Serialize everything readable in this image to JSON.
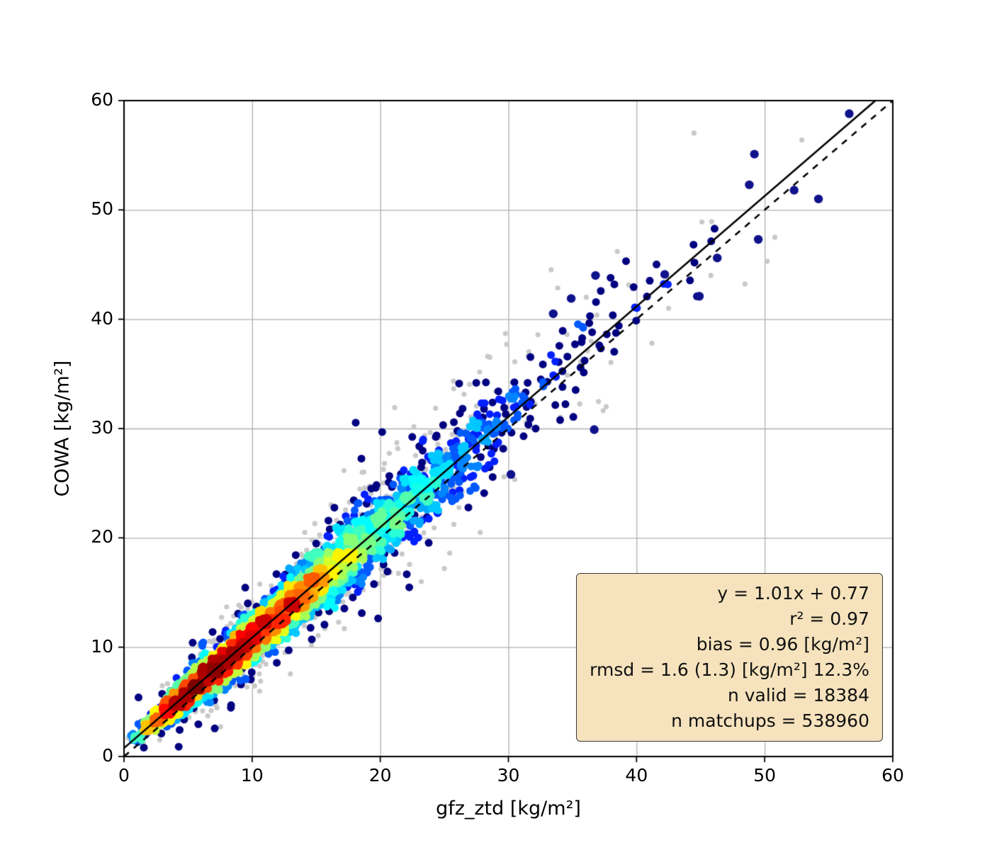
{
  "chart_data": {
    "type": "scatter",
    "title": "",
    "xlabel": "gfz_ztd [kg/m²]",
    "ylabel": "COWA [kg/m²]",
    "xlim": [
      0,
      60
    ],
    "ylim": [
      0,
      60
    ],
    "xticks": [
      0,
      10,
      20,
      30,
      40,
      50,
      60
    ],
    "yticks": [
      0,
      10,
      20,
      30,
      40,
      50,
      60
    ],
    "grid": true,
    "grid_color": "#b0b0b0",
    "colormap": "jet",
    "fit_line": {
      "slope": 1.01,
      "intercept": 0.77,
      "style": "solid",
      "color": "#000000"
    },
    "identity_line": {
      "slope": 1,
      "intercept": 0,
      "style": "dashed",
      "color": "#000000"
    },
    "stats_box": {
      "background": "#f6e3bd",
      "border": "#3a3a3a",
      "lines": [
        "y = 1.01x + 0.77",
        "r² = 0.97",
        "bias = 0.96 [kg/m²]",
        "rmsd = 1.6 (1.3) [kg/m²] 12.3%",
        "n valid = 18384",
        "n matchups = 538960"
      ],
      "fit_equation": "y = 1.01x + 0.77",
      "r_squared": 0.97,
      "bias": 0.96,
      "rmsd": 1.6,
      "rmsd_alt": 1.3,
      "rmsd_percent": 12.3,
      "n_valid": 18384,
      "n_matchups": 538960
    },
    "density_scatter": {
      "seed": 42,
      "n_colored": 4200,
      "n_gray": 650,
      "x_gamma_shape": 3,
      "x_gamma_scale": 4.2,
      "noise_base": 0.45,
      "noise_slope": 0.055,
      "wide_frac": 0.03,
      "wide_mult": 2.8,
      "gray_noise_base": 0.9,
      "gray_noise_slope": 0.11,
      "point_radius": 5.5,
      "gray_radius": 3.6,
      "gray_color": "#c9c9c9",
      "navy_color": "#10128c",
      "outliers_navy": [
        [
          56.6,
          58.8
        ],
        [
          49.2,
          55.1
        ],
        [
          52.3,
          51.8
        ],
        [
          54.2,
          51.0
        ],
        [
          49.5,
          47.3
        ],
        [
          46.3,
          45.6
        ],
        [
          44.9,
          42.1
        ],
        [
          36.8,
          44.0
        ],
        [
          34.9,
          41.9
        ],
        [
          33.5,
          40.5
        ],
        [
          48.8,
          52.3
        ],
        [
          42.2,
          44.1
        ],
        [
          36.7,
          29.9
        ],
        [
          30.2,
          25.8
        ]
      ],
      "outliers_gray": [
        [
          52.9,
          56.4
        ],
        [
          50.8,
          47.5
        ],
        [
          45.1,
          48.9
        ],
        [
          42.5,
          41.0
        ],
        [
          38.5,
          46.2
        ],
        [
          30.5,
          36.1
        ],
        [
          41.2,
          37.8
        ],
        [
          25.0,
          17.2
        ],
        [
          23.2,
          16.0
        ],
        [
          27.8,
          20.5
        ],
        [
          45.8,
          44.0
        ],
        [
          50.2,
          45.3
        ]
      ]
    }
  }
}
